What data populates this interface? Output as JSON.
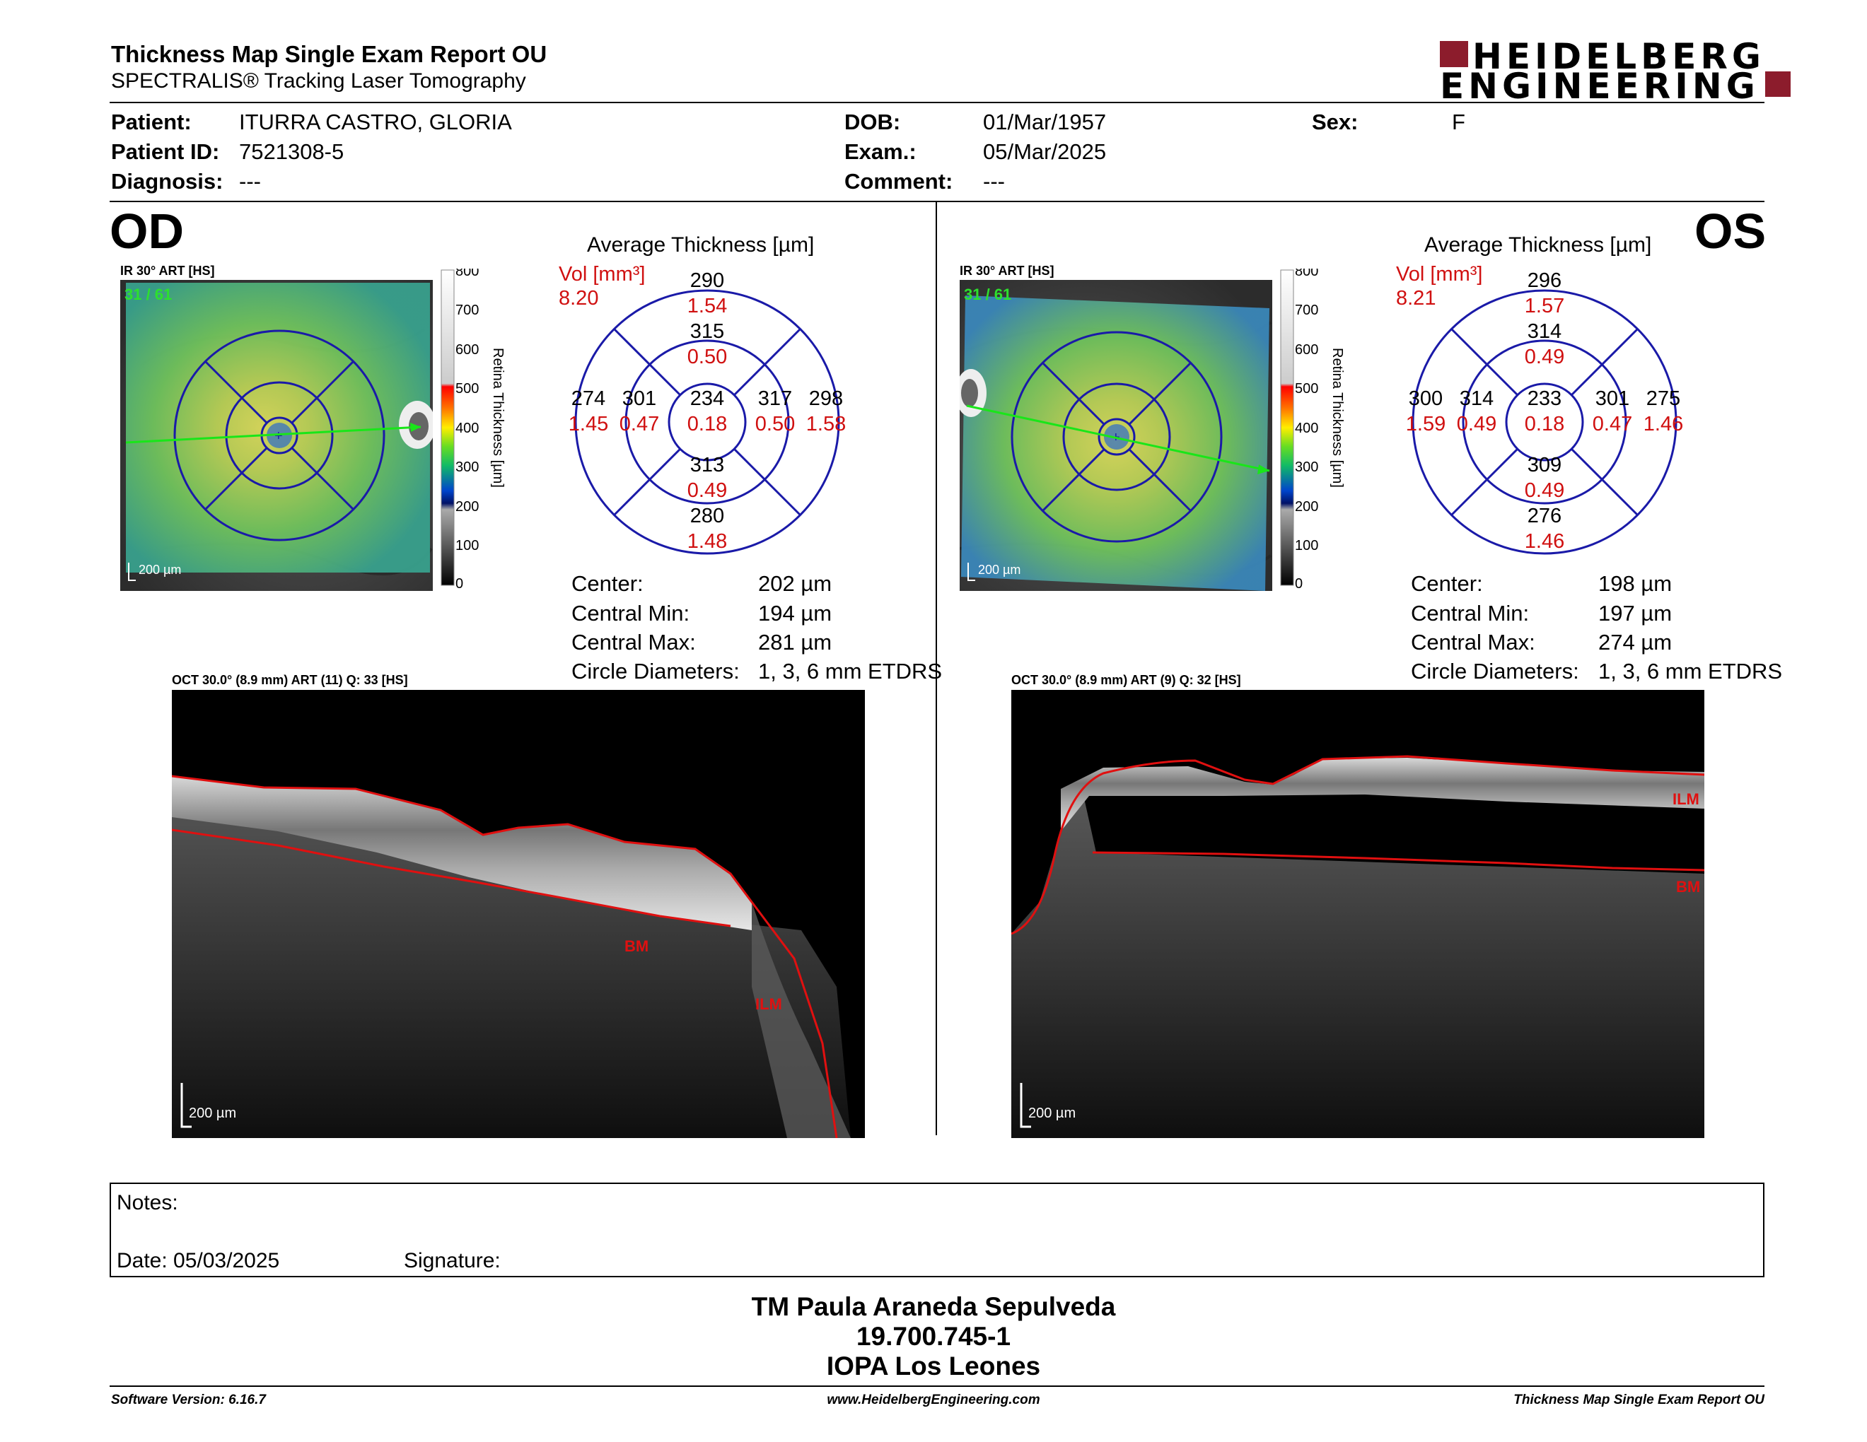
{
  "header": {
    "title": "Thickness Map Single Exam Report OU",
    "subtitle": "SPECTRALIS® Tracking Laser Tomography",
    "logo_line1": "HEIDELBERG",
    "logo_line2": "ENGINEERING",
    "brand_color": "#8c1c2c"
  },
  "patient": {
    "patient_label": "Patient:",
    "patient_value": "ITURRA CASTRO, GLORIA",
    "id_label": "Patient ID:",
    "id_value": "7521308-5",
    "diagnosis_label": "Diagnosis:",
    "diagnosis_value": "---",
    "dob_label": "DOB:",
    "dob_value": "01/Mar/1957",
    "exam_label": "Exam.:",
    "exam_value": "05/Mar/2025",
    "comment_label": "Comment:",
    "comment_value": "---",
    "sex_label": "Sex:",
    "sex_value": "F"
  },
  "od": {
    "eye": "OD",
    "ir_label": "IR 30° ART [HS]",
    "ir_overlay": "31 / 61",
    "scale_bar": "200 µm",
    "colorbar_title": "Retina Thickness [µm]",
    "colorbar_ticks": [
      "800",
      "700",
      "600",
      "500",
      "400",
      "300",
      "200",
      "100",
      "0"
    ],
    "etdrs_title": "Average Thickness [µm]",
    "vol_label": "Vol [mm³]",
    "vol_total": "8.20",
    "sectors": {
      "center": {
        "t": "234",
        "v": "0.18"
      },
      "inner_sup": {
        "t": "315",
        "v": "0.50"
      },
      "inner_inf": {
        "t": "313",
        "v": "0.49"
      },
      "inner_left": {
        "t": "301",
        "v": "0.47"
      },
      "inner_right": {
        "t": "317",
        "v": "0.50"
      },
      "outer_sup": {
        "t": "290",
        "v": "1.54"
      },
      "outer_inf": {
        "t": "280",
        "v": "1.48"
      },
      "outer_left": {
        "t": "274",
        "v": "1.45"
      },
      "outer_right": {
        "t": "298",
        "v": "1.58"
      }
    },
    "stats": {
      "center_label": "Center:",
      "center_value": "202 µm",
      "min_label": "Central Min:",
      "min_value": "194 µm",
      "max_label": "Central Max:",
      "max_value": "281 µm",
      "diam_label": "Circle Diameters:",
      "diam_value": "1, 3, 6 mm ETDRS"
    },
    "oct_label": "OCT 30.0° (8.9 mm) ART (11) Q: 33 [HS]",
    "oct_scale": "200 µm",
    "oct_ilm": "ILM",
    "oct_bm": "BM"
  },
  "os": {
    "eye": "OS",
    "ir_label": "IR 30° ART [HS]",
    "ir_overlay": "31 / 61",
    "scale_bar": "200 µm",
    "colorbar_title": "Retina Thickness [µm]",
    "colorbar_ticks": [
      "800",
      "700",
      "600",
      "500",
      "400",
      "300",
      "200",
      "100",
      "0"
    ],
    "etdrs_title": "Average Thickness [µm]",
    "vol_label": "Vol [mm³]",
    "vol_total": "8.21",
    "sectors": {
      "center": {
        "t": "233",
        "v": "0.18"
      },
      "inner_sup": {
        "t": "314",
        "v": "0.49"
      },
      "inner_inf": {
        "t": "309",
        "v": "0.49"
      },
      "inner_left": {
        "t": "314",
        "v": "0.49"
      },
      "inner_right": {
        "t": "301",
        "v": "0.47"
      },
      "outer_sup": {
        "t": "296",
        "v": "1.57"
      },
      "outer_inf": {
        "t": "276",
        "v": "1.46"
      },
      "outer_left": {
        "t": "300",
        "v": "1.59"
      },
      "outer_right": {
        "t": "275",
        "v": "1.46"
      }
    },
    "stats": {
      "center_label": "Center:",
      "center_value": "198 µm",
      "min_label": "Central Min:",
      "min_value": "197 µm",
      "max_label": "Central Max:",
      "max_value": "274 µm",
      "diam_label": "Circle Diameters:",
      "diam_value": "1, 3, 6 mm ETDRS"
    },
    "oct_label": "OCT 30.0° (8.9 mm) ART (9) Q: 32 [HS]",
    "oct_scale": "200 µm",
    "oct_ilm": "ILM",
    "oct_bm": "BM"
  },
  "notes": {
    "notes_label": "Notes:",
    "date_label": "Date: 05/03/2025",
    "signature_label": "Signature:"
  },
  "stamp": {
    "line1": "TM Paula Araneda Sepulveda",
    "line2": "19.700.745-1",
    "line3": "IOPA Los Leones"
  },
  "footer": {
    "left": "Software Version: 6.16.7",
    "center": "www.HeidelbergEngineering.com",
    "right": "Thickness Map Single Exam Report OU"
  },
  "colors": {
    "etdrs_grid": "#1a1aa8",
    "volume_red": "#d01010",
    "scan_line": "#19e619",
    "segmentation": "#e01010"
  }
}
